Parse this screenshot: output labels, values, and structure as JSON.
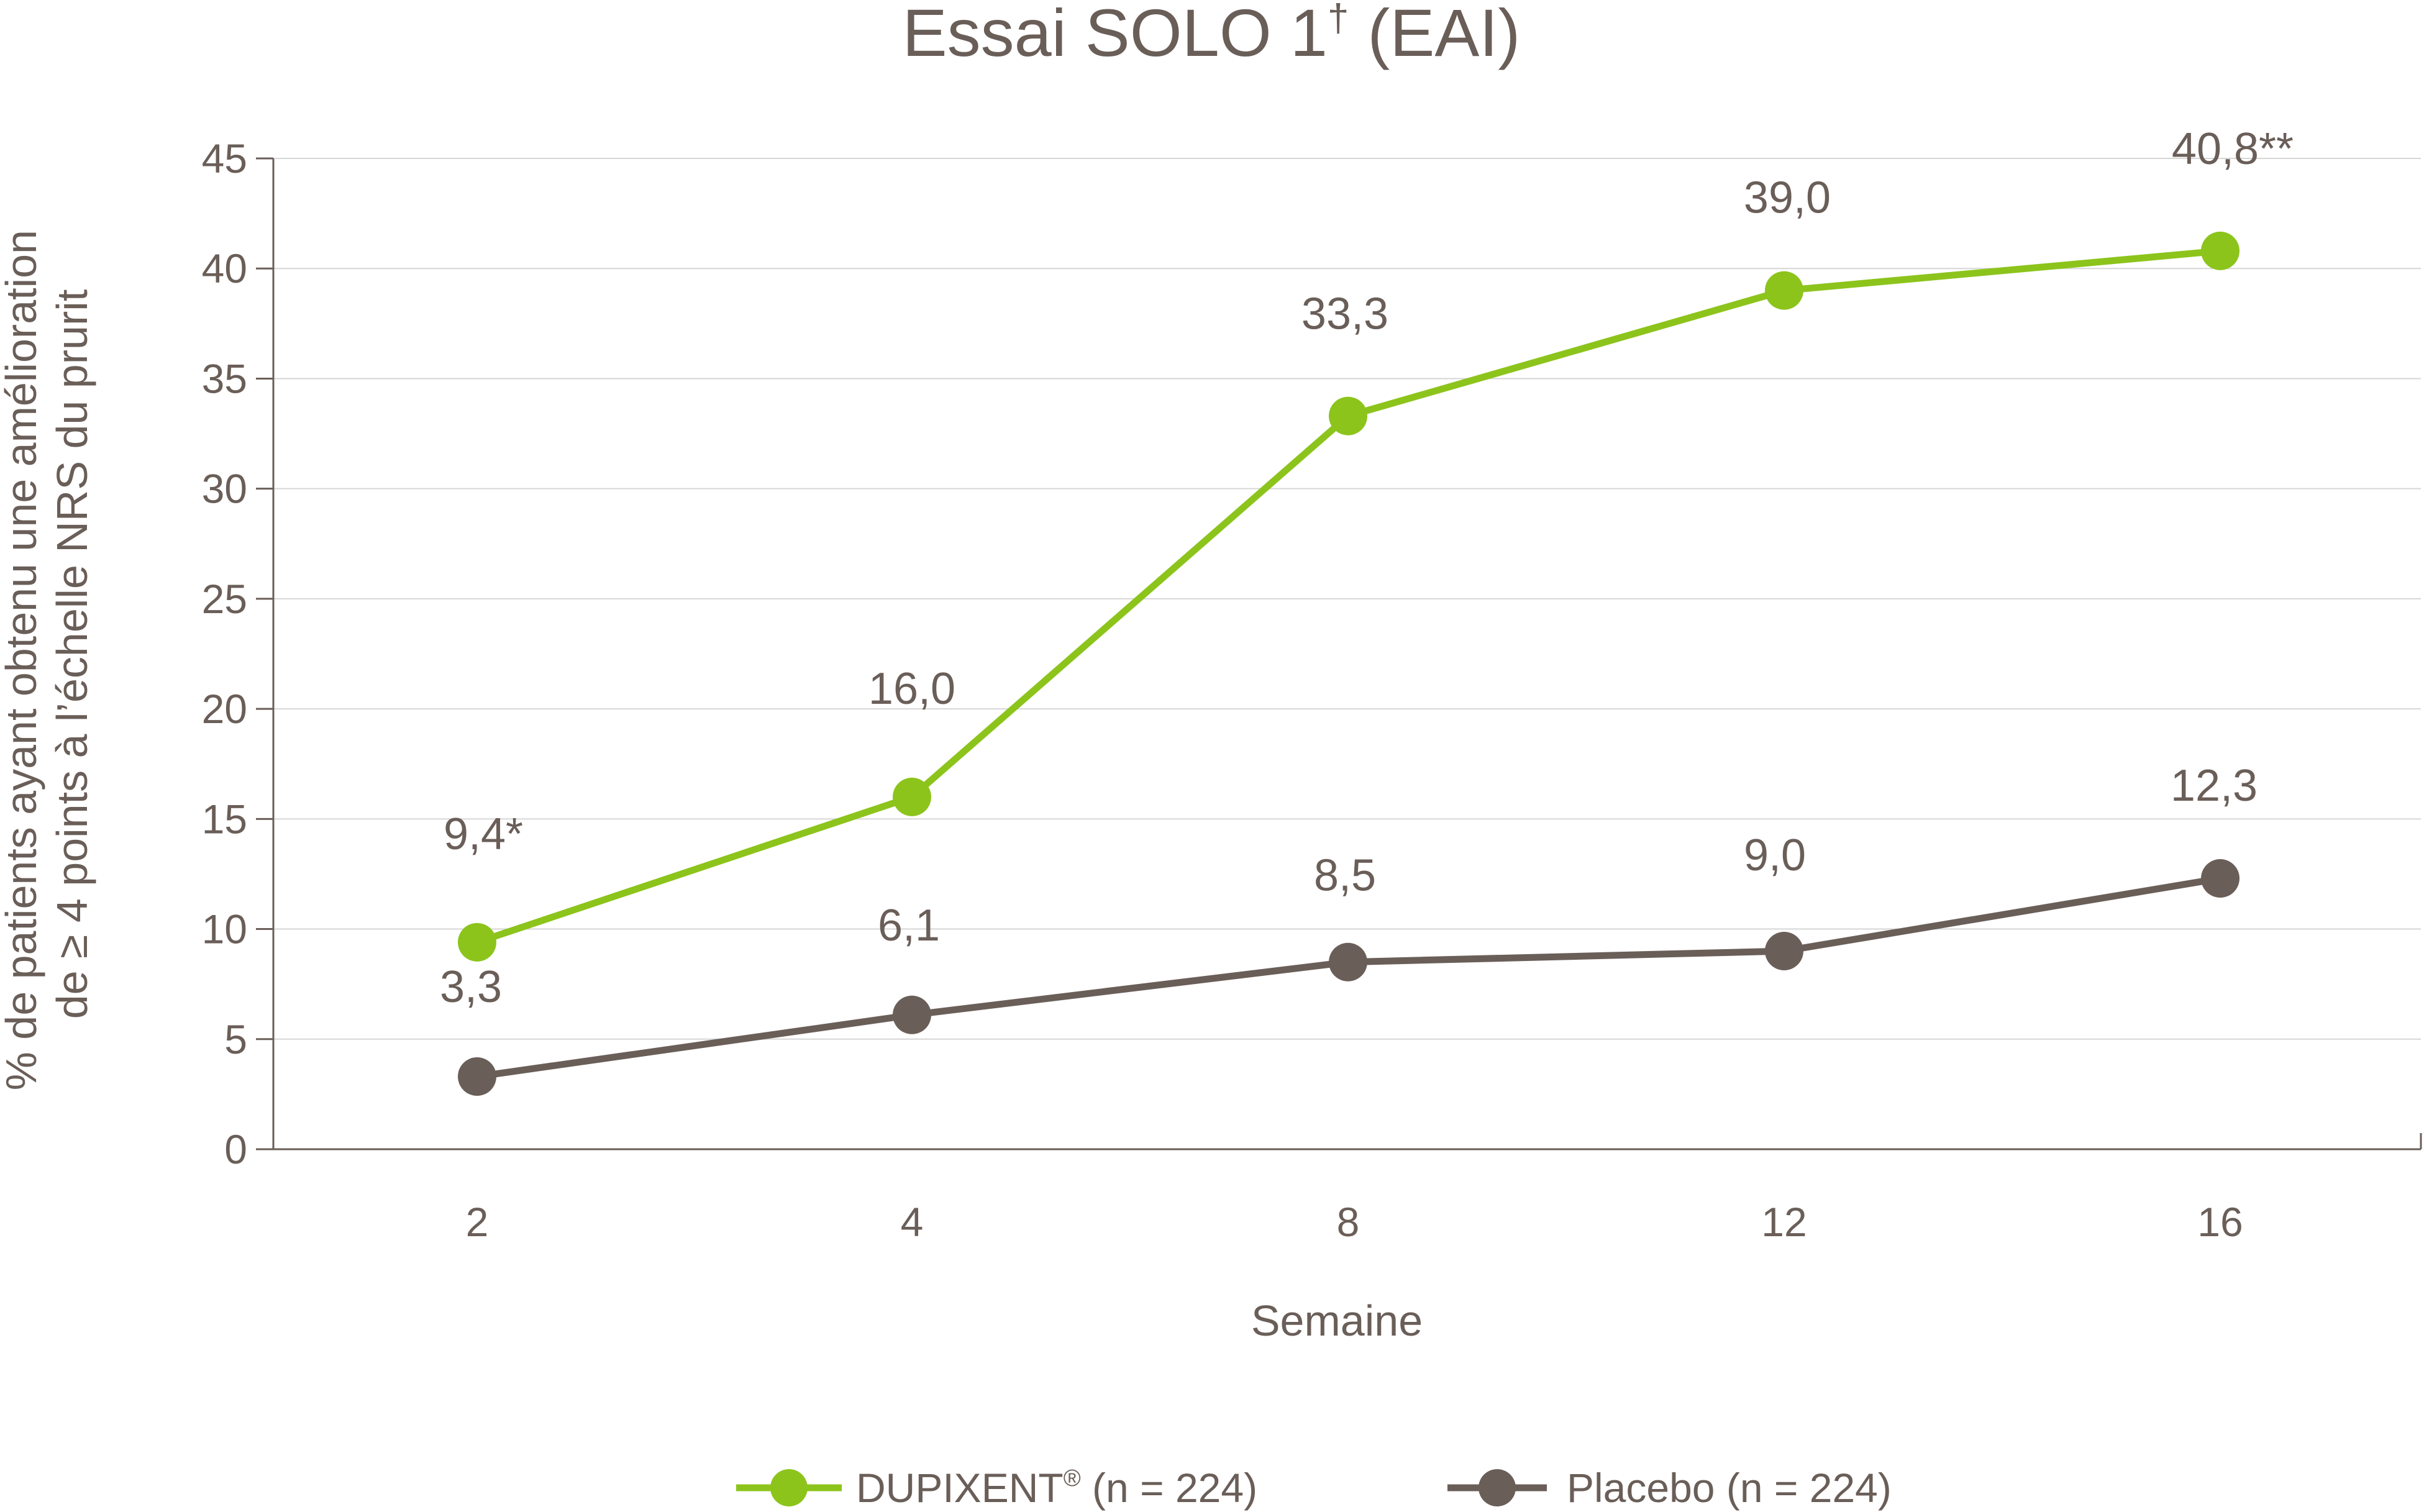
{
  "colors": {
    "dupixent": "#8cc41c",
    "placebo": "#6a5e58",
    "text": "#6a5e58",
    "grid": "#d6d6d6"
  },
  "chart_data": {
    "type": "line",
    "title": "Essai SOLO 1",
    "title_superscript": "†",
    "title_suffix": " (EAI)",
    "xlabel": "Semaine",
    "ylabel_line1": "% de patients ayant obtenu une amélioration",
    "ylabel_line2": "de ≥ 4 points à l’échelle NRS du prurit",
    "categories": [
      "2",
      "4",
      "8",
      "12",
      "16"
    ],
    "ylim": [
      0,
      45
    ],
    "yticks": [
      0,
      5,
      10,
      15,
      20,
      25,
      30,
      35,
      40,
      45
    ],
    "grid": true,
    "legend_position": "bottom-center",
    "series": [
      {
        "name": "DUPIXENT",
        "name_superscript": "®",
        "name_suffix": " (n = 224)",
        "color": "#8cc41c",
        "values": [
          9.4,
          16.0,
          33.3,
          39.0,
          40.8
        ],
        "labels": [
          "9,4*",
          "16,0",
          "33,3",
          "39,0",
          "40,8**"
        ]
      },
      {
        "name": "Placebo",
        "name_suffix": " (n = 224)",
        "color": "#6a5e58",
        "values": [
          3.3,
          6.1,
          8.5,
          9.0,
          12.3
        ],
        "labels": [
          "3,3",
          "6,1",
          "8,5",
          "9,0",
          "12,3"
        ]
      }
    ]
  }
}
